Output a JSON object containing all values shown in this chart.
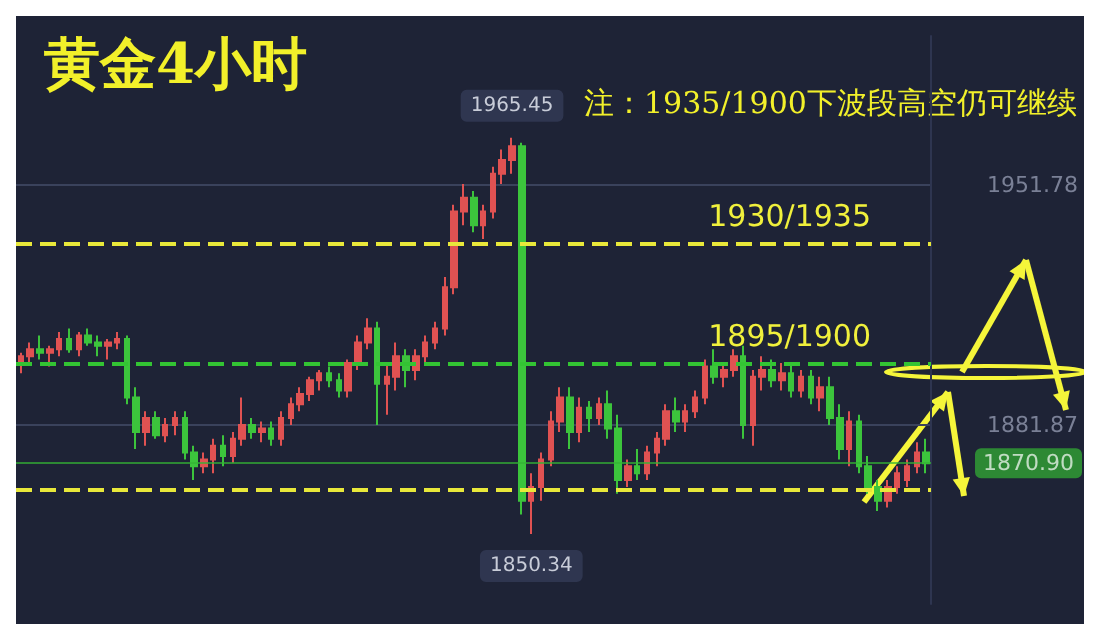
{
  "chart_data": {
    "type": "candlestick",
    "title": "黄金4小时",
    "annotations": [
      "注：1935/1900下波段高空仍可继续",
      {
        "text": "1965.45",
        "y": 1965.45
      },
      {
        "text": "1850.34",
        "y": 1850.34
      }
    ],
    "categories": [
      null,
      null,
      null,
      null,
      null,
      null,
      null,
      null,
      null,
      null,
      null,
      null,
      null,
      null,
      null,
      null,
      null,
      null,
      null,
      null,
      null,
      null,
      null,
      null,
      null,
      null,
      null,
      null,
      null,
      null,
      null,
      null,
      null,
      null,
      null,
      null,
      null,
      null,
      null,
      null,
      null,
      null,
      null,
      null,
      null,
      null,
      null,
      null,
      null,
      null,
      null,
      null,
      null,
      null,
      null,
      null,
      null,
      null,
      null,
      null,
      null,
      null,
      null,
      null,
      null,
      null,
      null,
      null,
      null,
      null,
      null,
      null,
      null,
      null,
      null,
      null,
      null,
      null,
      null,
      null,
      null,
      null,
      null,
      null,
      null,
      null,
      null,
      null,
      null,
      null,
      null,
      null,
      null,
      null,
      null
    ],
    "ohlc": [
      [
        1900,
        1903,
        1897,
        1902
      ],
      [
        1902,
        1906,
        1900,
        1904
      ],
      [
        1904,
        1908,
        1901,
        1903
      ],
      [
        1903,
        1905,
        1899,
        1904
      ],
      [
        1904,
        1909,
        1902,
        1907
      ],
      [
        1907,
        1910,
        1903,
        1904
      ],
      [
        1904,
        1909,
        1902,
        1908
      ],
      [
        1908,
        1910,
        1905,
        1906
      ],
      [
        1906,
        1908,
        1902,
        1905
      ],
      [
        1905,
        1907,
        1901,
        1906
      ],
      [
        1906,
        1909,
        1904,
        1907
      ],
      [
        1907,
        1908,
        1888,
        1890
      ],
      [
        1890,
        1893,
        1875,
        1880
      ],
      [
        1880,
        1886,
        1876,
        1884
      ],
      [
        1884,
        1886,
        1878,
        1879
      ],
      [
        1879,
        1884,
        1877,
        1882
      ],
      [
        1882,
        1886,
        1879,
        1884
      ],
      [
        1884,
        1886,
        1872,
        1874
      ],
      [
        1874,
        1876,
        1866,
        1870
      ],
      [
        1870,
        1874,
        1868,
        1872
      ],
      [
        1872,
        1878,
        1868,
        1876
      ],
      [
        1876,
        1879,
        1870,
        1873
      ],
      [
        1873,
        1880,
        1871,
        1878
      ],
      [
        1878,
        1890,
        1876,
        1882
      ],
      [
        1882,
        1884,
        1878,
        1880
      ],
      [
        1880,
        1883,
        1877,
        1881
      ],
      [
        1881,
        1883,
        1876,
        1878
      ],
      [
        1878,
        1886,
        1876,
        1884
      ],
      [
        1884,
        1890,
        1882,
        1888
      ],
      [
        1888,
        1893,
        1886,
        1891
      ],
      [
        1891,
        1896,
        1889,
        1895
      ],
      [
        1895,
        1898,
        1892,
        1897
      ],
      [
        1897,
        1899,
        1893,
        1895
      ],
      [
        1895,
        1897,
        1890,
        1892
      ],
      [
        1892,
        1901,
        1890,
        1900
      ],
      [
        1900,
        1908,
        1898,
        1906
      ],
      [
        1906,
        1913,
        1904,
        1910
      ],
      [
        1910,
        1912,
        1882,
        1894
      ],
      [
        1894,
        1900,
        1885,
        1896
      ],
      [
        1896,
        1906,
        1892,
        1902
      ],
      [
        1902,
        1904,
        1893,
        1898
      ],
      [
        1898,
        1904,
        1895,
        1902
      ],
      [
        1902,
        1908,
        1900,
        1906
      ],
      [
        1906,
        1912,
        1904,
        1910
      ],
      [
        1910,
        1925,
        1908,
        1922
      ],
      [
        1922,
        1946,
        1920,
        1944
      ],
      [
        1944,
        1952,
        1940,
        1948
      ],
      [
        1948,
        1950,
        1938,
        1940
      ],
      [
        1940,
        1946,
        1936,
        1944
      ],
      [
        1944,
        1957,
        1942,
        1955
      ],
      [
        1955,
        1962,
        1952,
        1959
      ],
      [
        1959,
        1965.45,
        1955,
        1963
      ],
      [
        1963,
        1964,
        1856,
        1860
      ],
      [
        1860,
        1868,
        1850.34,
        1864
      ],
      [
        1864,
        1874,
        1860,
        1872
      ],
      [
        1872,
        1886,
        1870,
        1883
      ],
      [
        1883,
        1893,
        1880,
        1890
      ],
      [
        1890,
        1893,
        1875,
        1880
      ],
      [
        1880,
        1890,
        1877,
        1887
      ],
      [
        1887,
        1889,
        1880,
        1884
      ],
      [
        1884,
        1890,
        1882,
        1888
      ],
      [
        1888,
        1892,
        1878,
        1881
      ],
      [
        1881,
        1885,
        1862,
        1866
      ],
      [
        1866,
        1872,
        1864,
        1870
      ],
      [
        1870,
        1875,
        1866,
        1868
      ],
      [
        1868,
        1876,
        1866,
        1874
      ],
      [
        1874,
        1880,
        1870,
        1878
      ],
      [
        1878,
        1888,
        1876,
        1886
      ],
      [
        1886,
        1890,
        1880,
        1883
      ],
      [
        1883,
        1888,
        1880,
        1886
      ],
      [
        1886,
        1892,
        1884,
        1890
      ],
      [
        1890,
        1901,
        1888,
        1899
      ],
      [
        1899,
        1904,
        1894,
        1896
      ],
      [
        1896,
        1900,
        1893,
        1898
      ],
      [
        1898,
        1904,
        1896,
        1902
      ],
      [
        1902,
        1905,
        1878,
        1882
      ],
      [
        1882,
        1898,
        1876,
        1896
      ],
      [
        1896,
        1902,
        1892,
        1898
      ],
      [
        1898,
        1901,
        1893,
        1895
      ],
      [
        1895,
        1900,
        1892,
        1897
      ],
      [
        1897,
        1900,
        1890,
        1892
      ],
      [
        1892,
        1898,
        1890,
        1896
      ],
      [
        1896,
        1898,
        1888,
        1890
      ],
      [
        1890,
        1896,
        1886,
        1893
      ],
      [
        1893,
        1896,
        1882,
        1884
      ],
      [
        1884,
        1888,
        1872,
        1875
      ],
      [
        1875,
        1886,
        1870,
        1883
      ],
      [
        1883,
        1885,
        1868,
        1870
      ],
      [
        1870,
        1873,
        1862,
        1864
      ],
      [
        1864,
        1866,
        1857,
        1860
      ],
      [
        1860,
        1866,
        1858,
        1864
      ],
      [
        1864,
        1870,
        1862,
        1868
      ],
      [
        1866,
        1872,
        1864,
        1870
      ],
      [
        1870,
        1877,
        1868,
        1874
      ],
      [
        1874,
        1878,
        1868,
        1870.9
      ]
    ],
    "colors": [
      "#e05252",
      "#e05252",
      "#3cc43c",
      "#e05252",
      "#e05252",
      "#3cc43c",
      "#e05252",
      "#3cc43c",
      "#3cc43c",
      "#e05252",
      "#e05252",
      "#3cc43c",
      "#3cc43c",
      "#e05252",
      "#3cc43c",
      "#e05252",
      "#e05252",
      "#3cc43c",
      "#3cc43c",
      "#e05252",
      "#e05252",
      "#3cc43c",
      "#e05252",
      "#e05252",
      "#3cc43c",
      "#e05252",
      "#3cc43c",
      "#e05252",
      "#e05252",
      "#e05252",
      "#e05252",
      "#e05252",
      "#3cc43c",
      "#3cc43c",
      "#e05252",
      "#e05252",
      "#e05252",
      "#3cc43c",
      "#e05252",
      "#e05252",
      "#3cc43c",
      "#e05252",
      "#e05252",
      "#e05252",
      "#e05252",
      "#e05252",
      "#e05252",
      "#3cc43c",
      "#e05252",
      "#e05252",
      "#e05252",
      "#e05252",
      "#3cc43c",
      "#e05252",
      "#e05252",
      "#e05252",
      "#e05252",
      "#3cc43c",
      "#e05252",
      "#3cc43c",
      "#e05252",
      "#3cc43c",
      "#3cc43c",
      "#e05252",
      "#3cc43c",
      "#e05252",
      "#e05252",
      "#e05252",
      "#3cc43c",
      "#e05252",
      "#e05252",
      "#e05252",
      "#3cc43c",
      "#e05252",
      "#e05252",
      "#3cc43c",
      "#e05252",
      "#e05252",
      "#3cc43c",
      "#e05252",
      "#3cc43c",
      "#e05252",
      "#3cc43c",
      "#e05252",
      "#3cc43c",
      "#3cc43c",
      "#e05252",
      "#3cc43c",
      "#3cc43c",
      "#3cc43c",
      "#e05252",
      "#e05252",
      "#e05252",
      "#e05252",
      "#3cc43c"
    ],
    "ylim": [
      1830,
      1995
    ],
    "yticks": [
      1951.78,
      1881.87
    ],
    "grid": "y",
    "tick_labels": "y",
    "ref_lines": [
      {
        "axis": "y",
        "value": 1935,
        "label": "1930/1935",
        "color": "#e8e83a",
        "line_style": "dashed"
      },
      {
        "axis": "y",
        "value": 1900,
        "label": "1895/1900",
        "color": "#33c433",
        "line_style": "dashed"
      },
      {
        "axis": "y",
        "value": 1863,
        "color": "#e8e83a",
        "line_style": "dashed"
      },
      {
        "axis": "y",
        "value": 1870.9,
        "label": "1870.90",
        "color": "#33b533",
        "line_style": "solid"
      }
    ]
  }
}
